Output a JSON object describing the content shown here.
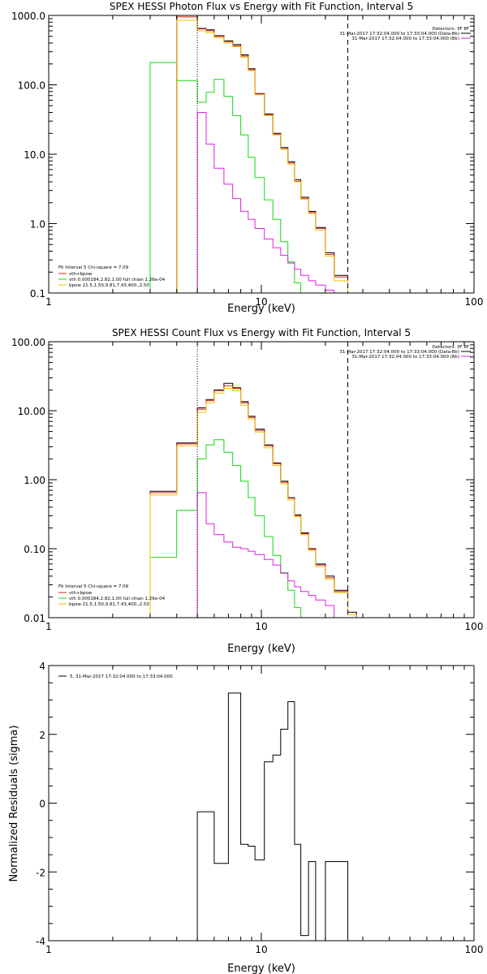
{
  "colors": {
    "data": "#000000",
    "total": "#e0201f",
    "vth": "#10dc10",
    "bpow": "#e020e0",
    "comp": "#f2c200"
  },
  "chart_data": [
    {
      "type": "line",
      "title": "SPEX HESSI Photon Flux vs Energy with Fit Function, Interval 5",
      "xlabel": "Energy (keV)",
      "ylabel": "",
      "xscale": "log",
      "yscale": "log",
      "xlim": [
        1,
        100
      ],
      "ylim": [
        0.1,
        1000
      ],
      "x_ticks": [
        "1",
        "10",
        "100"
      ],
      "y_ticks": [
        "0.1",
        "1.0",
        "10.0",
        "100.0",
        "1000.0"
      ],
      "fit_range": [
        5,
        25.5
      ],
      "legend_right": {
        "detectors": "Detectors: 3F 8F",
        "entries": [
          "31-Mar-2017 17:32:04.000 to 17:33:04.000 (Data-Bk)",
          "31-Mar-2017 17:32:04.000 to 17:33:04.000 (Bk)"
        ]
      },
      "legend_left": {
        "header": "Fit Interval 5   Chi-square = 7.09",
        "entries": [
          "vth+bpow",
          "vth 0.000184,2.82,1.00  full chian 1.26e-04",
          "bpow 21.5,1.50,9.81,7.43,400.,2.50"
        ]
      },
      "edges": [
        3,
        4,
        5,
        5.5,
        6,
        6.67,
        7.33,
        8,
        8.67,
        9.33,
        10.33,
        11.33,
        12.33,
        13.33,
        14.33,
        15.33,
        16.67,
        18,
        20,
        22,
        25.5
      ],
      "series": [
        {
          "name": "data",
          "values": [
            null,
            1000,
            650,
            620,
            510,
            430,
            380,
            270,
            170,
            75,
            38,
            20,
            12.5,
            7.8,
            4.3,
            2.4,
            1.5,
            0.88,
            0.38,
            0.18
          ]
        },
        {
          "name": "vth+bpow",
          "values": [
            null,
            950,
            640,
            600,
            500,
            420,
            365,
            260,
            165,
            74,
            37,
            19.5,
            12,
            7.5,
            4.1,
            2.3,
            1.45,
            0.85,
            0.36,
            0.17
          ]
        },
        {
          "name": "vth",
          "values": [
            210,
            115,
            56,
            78,
            120,
            68,
            36,
            19,
            9,
            4.6,
            2.2,
            1.15,
            0.55,
            0.28,
            0.14,
            null,
            null,
            null,
            null,
            null
          ]
        },
        {
          "name": "bpow",
          "values": [
            null,
            null,
            40,
            14,
            6.3,
            3.7,
            2.3,
            1.5,
            1.15,
            0.85,
            0.6,
            0.45,
            0.35,
            0.27,
            0.22,
            0.18,
            0.15,
            0.13,
            0.11,
            null
          ]
        },
        {
          "name": "bpow-comp",
          "values": [
            null,
            850,
            600,
            560,
            480,
            400,
            355,
            250,
            160,
            72,
            36,
            19,
            11.8,
            7.2,
            4,
            2.25,
            1.4,
            0.8,
            0.34,
            0.15
          ]
        }
      ]
    },
    {
      "type": "line",
      "title": "SPEX HESSI Count Flux vs Energy with Fit Function, Interval 5",
      "xlabel": "Energy (keV)",
      "ylabel": "",
      "xscale": "log",
      "yscale": "log",
      "xlim": [
        1,
        100
      ],
      "ylim": [
        0.01,
        100
      ],
      "x_ticks": [
        "1",
        "10",
        "100"
      ],
      "y_ticks": [
        "0.01",
        "0.10",
        "1.00",
        "10.00",
        "100.00"
      ],
      "fit_range": [
        5,
        25.5
      ],
      "legend_right": {
        "detectors": "Detectors: 3F 8F",
        "entries": [
          "31-Mar-2017 17:32:04.000 to 17:33:04.000 (Data-Bk)",
          "31-Mar-2017 17:32:04.000 to 17:33:04.000 (Bk)"
        ]
      },
      "legend_left": {
        "header": "Fit Interval 5   Chi-square = 7.09",
        "entries": [
          "vth+bpow",
          "vth 0.000184,2.82,1.00  full chian 1.26e-04",
          "bpow 21.5,1.50,9.81,7.43,400.,2.50"
        ]
      },
      "edges": [
        3,
        4,
        5,
        5.5,
        6,
        6.67,
        7.33,
        8,
        8.67,
        9.33,
        10.33,
        11.33,
        12.33,
        13.33,
        14.33,
        15.33,
        16.67,
        18,
        20,
        22,
        25.5,
        28
      ],
      "series": [
        {
          "name": "data",
          "values": [
            0.68,
            3.4,
            11,
            14.5,
            20,
            25,
            21.5,
            13.5,
            8.3,
            5.4,
            3.2,
            1.75,
            0.95,
            0.55,
            0.31,
            0.17,
            0.1,
            0.06,
            0.04,
            0.025,
            0.012
          ]
        },
        {
          "name": "vth+bpow",
          "values": [
            0.65,
            3.3,
            10.5,
            14,
            19.5,
            23,
            21,
            13,
            8,
            5.2,
            3.1,
            1.7,
            0.92,
            0.54,
            0.3,
            0.165,
            0.098,
            0.058,
            0.038,
            0.024,
            0.011
          ]
        },
        {
          "name": "vth",
          "values": [
            0.075,
            0.36,
            2,
            3.2,
            3.8,
            2.5,
            1.6,
            0.95,
            0.55,
            0.3,
            0.15,
            0.08,
            0.045,
            0.025,
            0.014,
            null,
            null,
            null,
            null,
            null,
            null
          ]
        },
        {
          "name": "bpow",
          "values": [
            null,
            null,
            0.65,
            0.23,
            0.16,
            0.125,
            0.105,
            0.1,
            0.092,
            0.082,
            0.07,
            0.058,
            0.044,
            0.034,
            0.028,
            0.024,
            0.021,
            0.018,
            0.015,
            null,
            null
          ]
        },
        {
          "name": "bpow-comp",
          "values": [
            0.6,
            3.1,
            9.5,
            13,
            18,
            21,
            19.5,
            12,
            7.6,
            4.9,
            2.9,
            1.6,
            0.87,
            0.51,
            0.29,
            0.16,
            0.094,
            0.055,
            0.036,
            0.023,
            0.011
          ]
        }
      ]
    },
    {
      "type": "line",
      "title": "",
      "xlabel": "Energy (keV)",
      "ylabel": "Normalized Residuals (sigma)",
      "xscale": "log",
      "yscale": "linear",
      "xlim": [
        1,
        100
      ],
      "ylim": [
        -4,
        4
      ],
      "x_ticks": [
        "1",
        "10",
        "100"
      ],
      "y_ticks": [
        "-4",
        "-2",
        "0",
        "2",
        "4"
      ],
      "legend": "5, 31-Mar-2017 17:32:04.000 to 17:33:04.000",
      "edges": [
        5,
        6,
        7,
        8,
        8.67,
        9.33,
        10.33,
        11.33,
        12.33,
        13.33,
        14.33,
        15.33,
        16.67,
        18,
        20,
        22,
        25.5
      ],
      "values": [
        -0.25,
        -1.75,
        3.2,
        -1.2,
        -1.25,
        -1.65,
        1.2,
        1.4,
        2.15,
        2.95,
        -1.2,
        -3.85,
        -1.7,
        null,
        -1.7,
        -1.7
      ]
    }
  ]
}
